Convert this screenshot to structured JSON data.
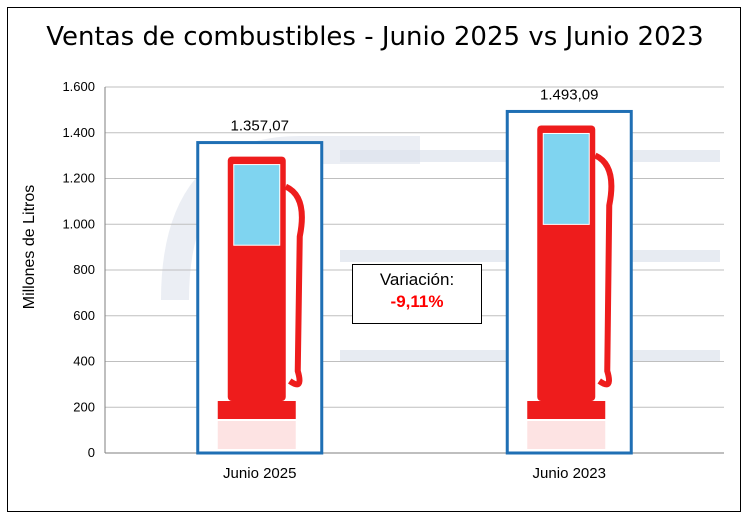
{
  "chart_data": {
    "type": "bar",
    "title": "Ventas de combustibles - Junio 2025 vs Junio 2023",
    "ylabel": "Millones de Litros",
    "xlabel": "",
    "ylim": [
      0,
      1600
    ],
    "yticks": [
      0,
      200,
      400,
      600,
      800,
      1000,
      1200,
      1400,
      1600
    ],
    "ytick_labels": [
      "0",
      "200",
      "400",
      "600",
      "800",
      "1.000",
      "1.200",
      "1.400",
      "1.600"
    ],
    "categories": [
      "Junio 2025",
      "Junio 2023"
    ],
    "values": [
      1357.07,
      1493.09
    ],
    "value_labels": [
      "1.357,07",
      "1.493,09"
    ],
    "grid": true,
    "bar_style": "fuel-pump-picture",
    "annotation": {
      "label": "Variación:",
      "value": "-9,11%"
    }
  },
  "colors": {
    "bar_border": "#1f6fb4",
    "pump_red": "#ee1c1c",
    "pump_glass": "#7fd4f0",
    "gridline": "#bfbfbf",
    "variation_value": "#ff0000",
    "watermark": "#dde3ec"
  }
}
